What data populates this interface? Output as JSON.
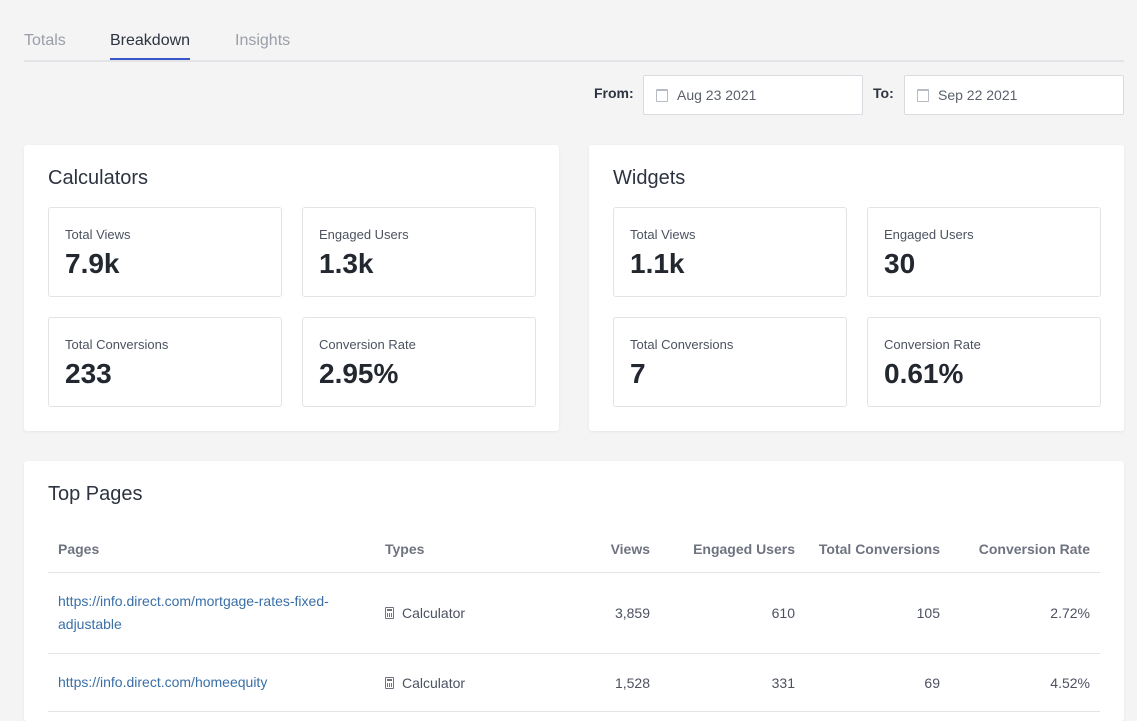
{
  "tabs": [
    "Totals",
    "Breakdown",
    "Insights"
  ],
  "active_tab": "Breakdown",
  "filters": {
    "from_label": "From:",
    "from_value": "Aug 23 2021",
    "to_label": "To:",
    "to_value": "Sep 22 2021"
  },
  "calculators": {
    "title": "Calculators",
    "stats": [
      {
        "label": "Total Views",
        "value": "7.9k"
      },
      {
        "label": "Engaged Users",
        "value": "1.3k"
      },
      {
        "label": "Total Conversions",
        "value": "233"
      },
      {
        "label": "Conversion Rate",
        "value": "2.95%"
      }
    ]
  },
  "widgets": {
    "title": "Widgets",
    "stats": [
      {
        "label": "Total Views",
        "value": "1.1k"
      },
      {
        "label": "Engaged Users",
        "value": "30"
      },
      {
        "label": "Total Conversions",
        "value": "7"
      },
      {
        "label": "Conversion Rate",
        "value": "0.61%"
      }
    ]
  },
  "top_pages": {
    "title": "Top Pages",
    "columns": [
      "Pages",
      "Types",
      "Views",
      "Engaged Users",
      "Total Conversions",
      "Conversion Rate"
    ],
    "rows": [
      {
        "page": "https://info.direct.com/mortgage-rates-fixed-adjustable",
        "type": "Calculator",
        "type_icon": "calculator-icon",
        "views": "3,859",
        "engaged": "610",
        "conversions": "105",
        "rate": "2.72%"
      },
      {
        "page": "https://info.direct.com/homeequity",
        "type": "Calculator",
        "type_icon": "calculator-icon",
        "views": "1,528",
        "engaged": "331",
        "conversions": "69",
        "rate": "4.52%"
      }
    ]
  },
  "colors": {
    "accent": "#3a57c9",
    "link": "#3a6fa6",
    "background": "#f4f4f4"
  }
}
